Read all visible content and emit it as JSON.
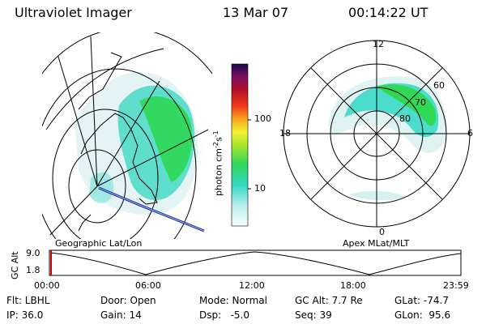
{
  "header": {
    "instrument": "Ultraviolet Imager",
    "date": "13 Mar 07",
    "time": "00:14:22 UT"
  },
  "colorbar": {
    "label": "photon cm",
    "label_sup1": "-2",
    "label_mid": "s",
    "label_sup2": "-1",
    "scale": "log",
    "ticks": [
      "100",
      "10"
    ],
    "tick_values": [
      100,
      10
    ],
    "range": [
      3,
      600
    ]
  },
  "panels": {
    "left_label": "Geographic Lat/Lon",
    "right_label": "Apex MLat/MLT"
  },
  "polar": {
    "mlt_labels": {
      "top": "12",
      "left": "18",
      "right": "6",
      "bottom": "0"
    },
    "lat_labels": [
      "60",
      "70",
      "80"
    ]
  },
  "timeline": {
    "ylabel": "GC Alt",
    "yticks": [
      "9.0",
      "1.8"
    ],
    "xticks": [
      "00:00",
      "06:00",
      "12:00",
      "18:00",
      "23:59"
    ],
    "current_time_marker": "00:14:22"
  },
  "footer": {
    "flt": "Flt: LBHL",
    "ip": "IP: 36.0",
    "door": "Door: Open",
    "gain": "Gain: 14",
    "mode": "Mode: Normal",
    "dsp": "Dsp:   -5.0",
    "gcalt": "GC Alt: 7.7 Re",
    "seq": "Seq: 39",
    "glat": "GLat: -74.7",
    "glon": "GLon:  95.6"
  },
  "colors": {
    "aurora_bright": "#2ee02e",
    "aurora_mid": "#35d6c8",
    "aurora_faint": "#d8eff0",
    "marker": "#cc0000",
    "orbit_track": "#1a2a90"
  }
}
